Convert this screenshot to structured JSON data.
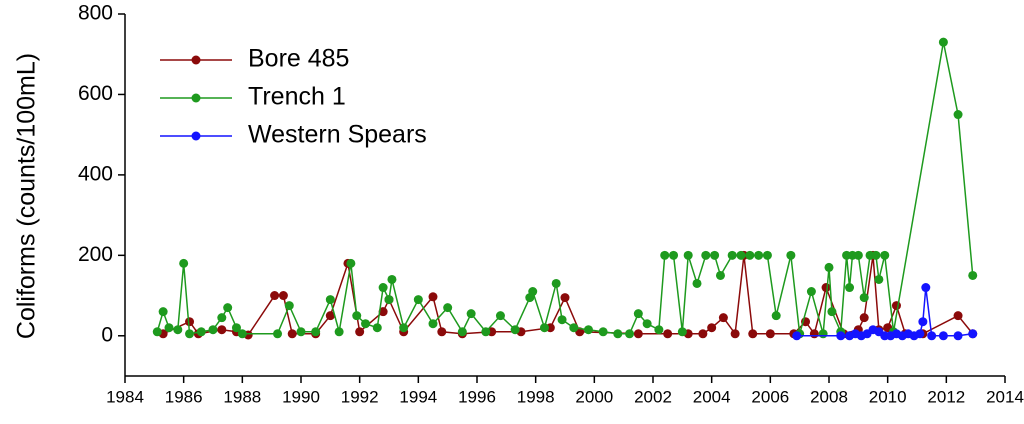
{
  "chart_data": {
    "type": "line",
    "y_label": "Coliforms (counts/100mL)",
    "xlim": [
      1984,
      2014
    ],
    "xticks": [
      1984,
      1986,
      1988,
      1990,
      1992,
      1994,
      1996,
      1998,
      2000,
      2002,
      2004,
      2006,
      2008,
      2010,
      2012,
      2014
    ],
    "ylim": [
      -100,
      800
    ],
    "yticks": [
      0,
      200,
      400,
      600,
      800
    ],
    "legend": "upper-left",
    "series": [
      {
        "name": "Bore 485",
        "color": "#8b0a0a",
        "x": [
          1985.3,
          1986.2,
          1986.5,
          1987.3,
          1987.8,
          1988.2,
          1989.1,
          1989.4,
          1989.7,
          1990.5,
          1991.0,
          1991.6,
          1992.0,
          1992.8,
          1993.0,
          1993.5,
          1994.5,
          1994.8,
          1995.5,
          1996.5,
          1997.5,
          1998.5,
          1999.0,
          1999.5,
          2001.5,
          2002.5,
          2003.2,
          2003.7,
          2004.0,
          2004.4,
          2004.8,
          2005.1,
          2005.4,
          2006.0,
          2006.8,
          2007.2,
          2007.5,
          2007.9,
          2008.5,
          2009.0,
          2009.2,
          2009.5,
          2009.7,
          2010.0,
          2010.3,
          2010.6,
          2011.2,
          2012.4,
          2012.9
        ],
        "values": [
          5,
          35,
          5,
          15,
          10,
          2,
          100,
          100,
          5,
          5,
          50,
          180,
          10,
          60,
          90,
          10,
          97,
          10,
          5,
          10,
          10,
          20,
          95,
          10,
          5,
          5,
          5,
          5,
          20,
          45,
          5,
          200,
          5,
          5,
          5,
          35,
          5,
          120,
          5,
          15,
          45,
          200,
          15,
          20,
          75,
          5,
          5,
          50,
          5
        ]
      },
      {
        "name": "Trench 1",
        "color": "#1e9a1e",
        "x": [
          1985.1,
          1985.3,
          1985.5,
          1985.8,
          1986.0,
          1986.2,
          1986.6,
          1987.0,
          1987.3,
          1987.5,
          1987.8,
          1988.0,
          1989.2,
          1989.6,
          1990.0,
          1990.5,
          1991.0,
          1991.3,
          1991.7,
          1991.9,
          1992.2,
          1992.6,
          1992.8,
          1993.0,
          1993.1,
          1993.5,
          1994.0,
          1994.5,
          1995.0,
          1995.5,
          1995.8,
          1996.3,
          1996.8,
          1997.3,
          1997.8,
          1997.9,
          1998.3,
          1998.7,
          1998.9,
          1999.3,
          1999.8,
          2000.3,
          2000.8,
          2001.2,
          2001.5,
          2001.8,
          2002.2,
          2002.4,
          2002.7,
          2003.0,
          2003.2,
          2003.5,
          2003.8,
          2004.1,
          2004.3,
          2004.7,
          2005.0,
          2005.3,
          2005.6,
          2005.9,
          2006.2,
          2006.7,
          2007.0,
          2007.4,
          2007.8,
          2008.0,
          2008.1,
          2008.4,
          2008.6,
          2008.7,
          2008.8,
          2009.0,
          2009.2,
          2009.4,
          2009.6,
          2009.7,
          2009.9,
          2010.2,
          2011.9,
          2012.4,
          2012.9
        ],
        "values": [
          10,
          60,
          20,
          15,
          180,
          5,
          10,
          15,
          45,
          70,
          20,
          5,
          5,
          75,
          10,
          10,
          90,
          10,
          180,
          50,
          30,
          20,
          120,
          90,
          140,
          20,
          90,
          30,
          70,
          10,
          55,
          10,
          50,
          15,
          95,
          110,
          20,
          130,
          40,
          20,
          15,
          10,
          5,
          5,
          55,
          30,
          15,
          200,
          200,
          10,
          200,
          130,
          200,
          200,
          150,
          200,
          200,
          200,
          200,
          200,
          50,
          200,
          5,
          110,
          5,
          170,
          60,
          10,
          200,
          120,
          200,
          200,
          95,
          200,
          200,
          140,
          200,
          10,
          730,
          550,
          150
        ]
      },
      {
        "name": "Western Spears",
        "color": "#1414ff",
        "x": [
          2006.9,
          2008.4,
          2008.7,
          2008.9,
          2009.1,
          2009.3,
          2009.5,
          2009.7,
          2009.9,
          2010.1,
          2010.3,
          2010.5,
          2010.7,
          2010.9,
          2011.1,
          2011.2,
          2011.3,
          2011.5,
          2011.9,
          2012.4,
          2012.9
        ],
        "values": [
          0,
          0,
          0,
          5,
          0,
          5,
          15,
          10,
          0,
          0,
          5,
          0,
          5,
          0,
          5,
          35,
          120,
          0,
          0,
          0,
          5
        ]
      }
    ]
  }
}
